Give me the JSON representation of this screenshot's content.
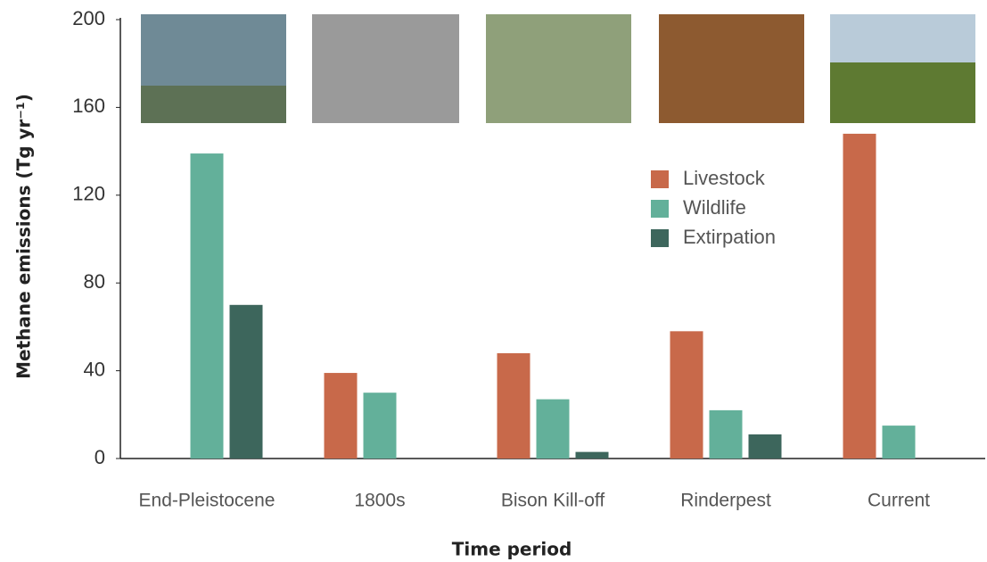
{
  "chart_data": {
    "type": "bar",
    "xlabel": "Time period",
    "ylabel": "Methane emissions (Tg yr⁻¹)",
    "categories": [
      "End-Pleistocene",
      "1800s",
      "Bison Kill-off",
      "Rinderpest",
      "Current"
    ],
    "series": [
      {
        "name": "Livestock",
        "color": "#c8694a",
        "values": [
          null,
          39,
          48,
          58,
          148
        ]
      },
      {
        "name": "Wildlife",
        "color": "#63b09a",
        "values": [
          139,
          30,
          27,
          22,
          15
        ]
      },
      {
        "name": "Extirpation",
        "color": "#3d665c",
        "values": [
          70,
          null,
          3,
          11,
          null
        ]
      }
    ],
    "ylim": [
      0,
      200
    ],
    "yticks": [
      0,
      40,
      80,
      120,
      160,
      200
    ],
    "grid": false,
    "legend": "upper right"
  }
}
